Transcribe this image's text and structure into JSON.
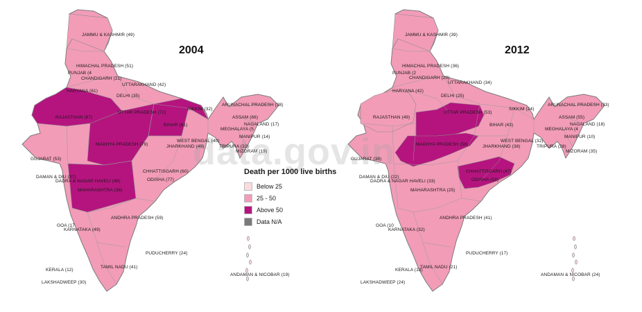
{
  "watermark": "data.gov.in",
  "legend": {
    "title": "Death per 1000 live births",
    "items": [
      {
        "label": "Below 25",
        "color": "#fbdcde"
      },
      {
        "label": "25 - 50",
        "color": "#f29cb8"
      },
      {
        "label": "Above 50",
        "color": "#b5147f"
      },
      {
        "label": "Data N/A",
        "color": "#7a7a7a"
      }
    ]
  },
  "maps": [
    {
      "year": "2004",
      "labels": [
        {
          "text": "JAMMU & KASHMIR (49)",
          "cat": "mid"
        },
        {
          "text": "HIMACHAL PRADESH (51)",
          "cat": "high"
        },
        {
          "text": "PUNJAB (4",
          "cat": "high"
        },
        {
          "text": "CHANDIGARH (21)",
          "cat": "low"
        },
        {
          "text": "UTTARAKHAND (42)",
          "cat": "mid"
        },
        {
          "text": "HARYANA (61)",
          "cat": "high"
        },
        {
          "text": "DELHI (35)",
          "cat": "mid"
        },
        {
          "text": "RAJASTHAN (67)",
          "cat": "high"
        },
        {
          "text": "UTTAR PRADESH (72)",
          "cat": "high"
        },
        {
          "text": "BIHAR (61)",
          "cat": "high"
        },
        {
          "text": "SIKKIM (32)",
          "cat": "mid"
        },
        {
          "text": "ARUNACHAL PRADESH (38)",
          "cat": "mid"
        },
        {
          "text": "ASSAM (66)",
          "cat": "high"
        },
        {
          "text": "MEGHALAYA (5",
          "cat": "high"
        },
        {
          "text": "NAGALAND (17)",
          "cat": "low"
        },
        {
          "text": "MANIPUR (14)",
          "cat": "low"
        },
        {
          "text": "WEST BENGAL (40)",
          "cat": "mid"
        },
        {
          "text": "TRIPURA (32)",
          "cat": "mid"
        },
        {
          "text": "MIZORAM (19)",
          "cat": "low"
        },
        {
          "text": "JHARKHAND (49)",
          "cat": "mid"
        },
        {
          "text": "MADHYA PRADESH (79)",
          "cat": "high"
        },
        {
          "text": "GUJARAT (53)",
          "cat": "high"
        },
        {
          "text": "DAMAN & DIU (37)",
          "cat": "mid"
        },
        {
          "text": "DADRA & NAGAR HAVELI (48)",
          "cat": "mid"
        },
        {
          "text": "CHHATTISGARH (60)",
          "cat": "high"
        },
        {
          "text": "ODISHA (77)",
          "cat": "high"
        },
        {
          "text": "MAHARASHTRA (36)",
          "cat": "mid"
        },
        {
          "text": "ANDHRA PRADESH (59)",
          "cat": "high"
        },
        {
          "text": "GOA (17",
          "cat": "low"
        },
        {
          "text": "KARNATAKA (49)",
          "cat": "mid"
        },
        {
          "text": "PUDUCHERRY (24)",
          "cat": "low"
        },
        {
          "text": "TAMIL NADU (41)",
          "cat": "mid"
        },
        {
          "text": "KERALA (12)",
          "cat": "low"
        },
        {
          "text": "LAKSHADWEEP (30)",
          "cat": "mid"
        },
        {
          "text": "ANDAMAN & NICOBAR (19)",
          "cat": "low"
        }
      ]
    },
    {
      "year": "2012",
      "labels": [
        {
          "text": "JAMMU & KASHMIR (39)",
          "cat": "mid"
        },
        {
          "text": "HIMACHAL PRADESH (36)",
          "cat": "mid"
        },
        {
          "text": "PUNJAB (2",
          "cat": "mid"
        },
        {
          "text": "CHANDIGARH (20)",
          "cat": "low"
        },
        {
          "text": "UTTARAKHAND (34)",
          "cat": "mid"
        },
        {
          "text": "HARYANA (42)",
          "cat": "mid"
        },
        {
          "text": "DELHI (25)",
          "cat": "mid"
        },
        {
          "text": "RAJASTHAN (49)",
          "cat": "mid"
        },
        {
          "text": "UTTAR PRADESH (53)",
          "cat": "high"
        },
        {
          "text": "BIHAR (43)",
          "cat": "mid"
        },
        {
          "text": "SIKKIM (24)",
          "cat": "low"
        },
        {
          "text": "ARUNACHAL PRADESH (33)",
          "cat": "mid"
        },
        {
          "text": "ASSAM (55)",
          "cat": "high"
        },
        {
          "text": "MEGHALAYA (4",
          "cat": "mid"
        },
        {
          "text": "NAGALAND (18)",
          "cat": "low"
        },
        {
          "text": "MANIPUR (10)",
          "cat": "low"
        },
        {
          "text": "WEST BENGAL (32)",
          "cat": "mid"
        },
        {
          "text": "TRIPURA (28)",
          "cat": "mid"
        },
        {
          "text": "MIZORAM (35)",
          "cat": "mid"
        },
        {
          "text": "JHARKHAND (38)",
          "cat": "mid"
        },
        {
          "text": "MADHYA PRADESH (56)",
          "cat": "high"
        },
        {
          "text": "GUJARAT (38)",
          "cat": "mid"
        },
        {
          "text": "DAMAN & DIU (22)",
          "cat": "low"
        },
        {
          "text": "DADRA & NAGAR HAVELI (33)",
          "cat": "mid"
        },
        {
          "text": "CHHATTISGARH (47)",
          "cat": "mid"
        },
        {
          "text": "ODISHA (53)",
          "cat": "high"
        },
        {
          "text": "MAHARASHTRA (25)",
          "cat": "mid"
        },
        {
          "text": "ANDHRA PRADESH (41)",
          "cat": "mid"
        },
        {
          "text": "GOA (10",
          "cat": "low"
        },
        {
          "text": "KARNATAKA (32)",
          "cat": "mid"
        },
        {
          "text": "PUDUCHERRY (17)",
          "cat": "low"
        },
        {
          "text": "TAMIL NADU (21)",
          "cat": "low"
        },
        {
          "text": "KERALA (13)",
          "cat": "low"
        },
        {
          "text": "LAKSHADWEEP (24)",
          "cat": "low"
        },
        {
          "text": "ANDAMAN & NICOBAR (24)",
          "cat": "low"
        }
      ]
    }
  ]
}
